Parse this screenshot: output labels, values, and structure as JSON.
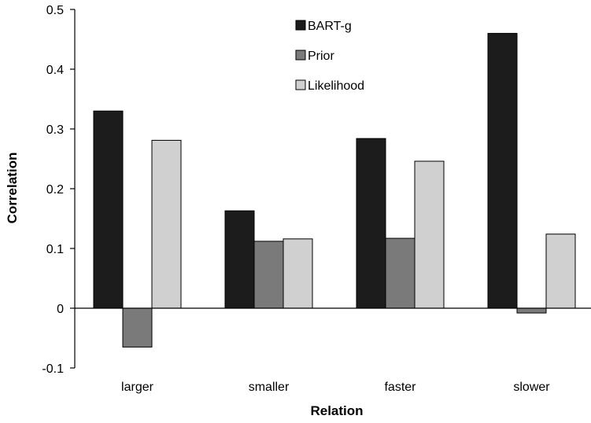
{
  "chart_data": {
    "type": "bar",
    "title": "",
    "xlabel": "Relation",
    "ylabel": "Correlation",
    "categories": [
      "larger",
      "smaller",
      "faster",
      "slower"
    ],
    "series": [
      {
        "name": "BART-g",
        "values": [
          0.33,
          0.163,
          0.284,
          0.46
        ],
        "color": "#1c1c1c"
      },
      {
        "name": "Prior",
        "values": [
          -0.065,
          0.112,
          0.117,
          -0.008
        ],
        "color": "#7a7a7a"
      },
      {
        "name": "Likelihood",
        "values": [
          0.281,
          0.116,
          0.246,
          0.124
        ],
        "color": "#d0d0d0"
      }
    ],
    "ylim": [
      -0.1,
      0.5
    ],
    "yticks": [
      "-0.1",
      "0",
      "0.1",
      "0.2",
      "0.3",
      "0.4",
      "0.5"
    ],
    "grid": false,
    "legend_position": "top-center"
  }
}
